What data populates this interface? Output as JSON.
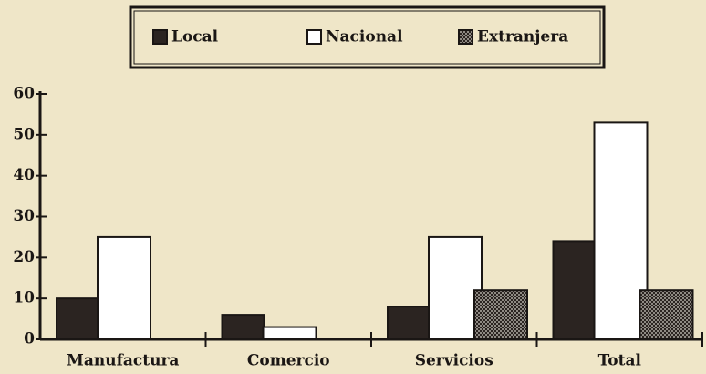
{
  "chart_data": {
    "type": "bar",
    "categories": [
      "Manufactura",
      "Comercio",
      "Servicios",
      "Total"
    ],
    "series": [
      {
        "name": "Local",
        "color": "#2b2421",
        "values": [
          10,
          6,
          8,
          24
        ]
      },
      {
        "name": "Nacional",
        "color": "#ffffff",
        "values": [
          25,
          3,
          25,
          53
        ]
      },
      {
        "name": "Extranjera",
        "color": "#8f8a84",
        "values": [
          0,
          0,
          12,
          12
        ]
      }
    ],
    "ylim": [
      0,
      60
    ],
    "yticks": [
      0,
      10,
      20,
      30,
      40,
      50,
      60
    ],
    "grid": false,
    "legend": "top"
  }
}
